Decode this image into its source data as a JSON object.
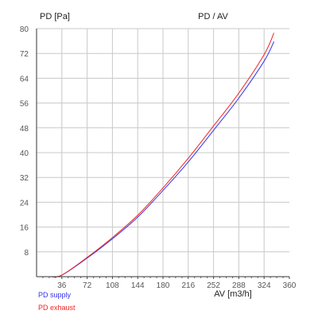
{
  "chart_data": {
    "type": "line",
    "title": "PD / AV",
    "ylabel": "PD [Pa]",
    "xlabel": "AV [m3/h]",
    "xlim": [
      0,
      360
    ],
    "ylim": [
      0,
      80
    ],
    "x_ticks": [
      36,
      72,
      108,
      144,
      180,
      216,
      252,
      288,
      324,
      360
    ],
    "y_ticks": [
      8,
      16,
      24,
      32,
      40,
      48,
      56,
      64,
      72,
      80
    ],
    "grid": true,
    "legend_position": "bottom-left",
    "series": [
      {
        "name": "PD supply",
        "color": "#3333ee",
        "x": [
          20,
          36,
          72,
          108,
          144,
          180,
          216,
          252,
          288,
          324,
          338
        ],
        "y": [
          0,
          0.5,
          6.0,
          12.2,
          19.2,
          27.8,
          37.0,
          47.2,
          57.6,
          69.5,
          75.8
        ]
      },
      {
        "name": "PD exhaust",
        "color": "#ee2222",
        "x": [
          20,
          36,
          72,
          108,
          144,
          180,
          216,
          252,
          288,
          324,
          338
        ],
        "y": [
          0,
          0.5,
          6.2,
          12.6,
          19.8,
          28.6,
          38.2,
          48.6,
          59.2,
          71.6,
          78.6
        ]
      }
    ]
  }
}
